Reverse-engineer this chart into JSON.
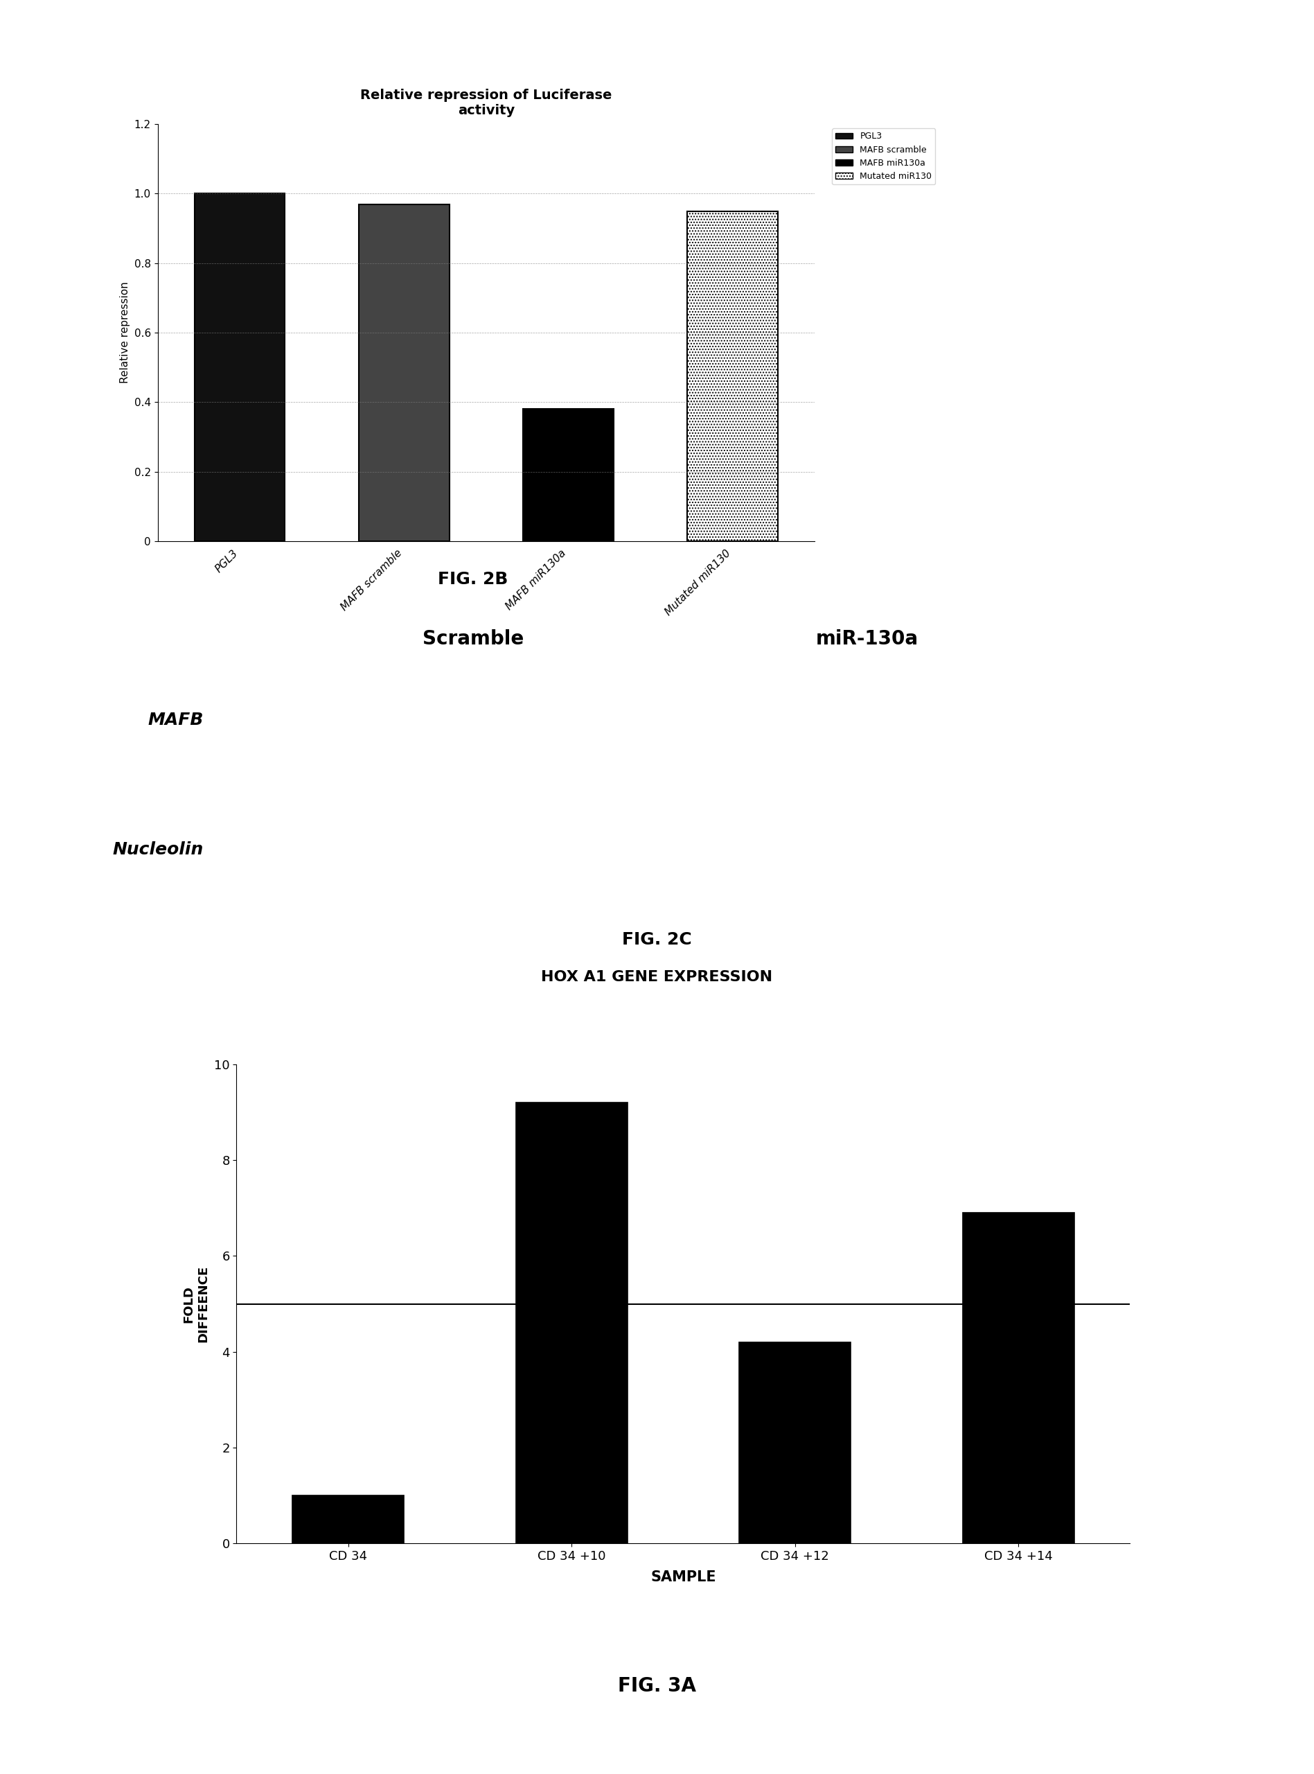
{
  "fig2b": {
    "title": "Relative repression of Luciferase\nactivity",
    "ylabel": "Relative repression",
    "categories": [
      "PGL3",
      "MAFB scramble",
      "MAFB miR130a",
      "Mutated miR130"
    ],
    "values": [
      1.0,
      0.97,
      0.38,
      0.95
    ],
    "bar_colors": [
      "#111111",
      "#444444",
      "#000000",
      "#ffffff"
    ],
    "bar_edgecolors": [
      "#000000",
      "#000000",
      "#000000",
      "#000000"
    ],
    "ylim": [
      0,
      1.2
    ],
    "yticks": [
      0,
      0.2,
      0.4,
      0.6,
      0.8,
      1.0,
      1.2
    ],
    "legend_labels": [
      "PGL3",
      "MAFB scramble",
      "MAFB miR130a",
      "Mutated miR130"
    ],
    "legend_colors": [
      "#111111",
      "#444444",
      "#000000",
      "#ffffff"
    ],
    "fig_label": "FIG. 2B"
  },
  "fig2c": {
    "scramble_label": "Scramble",
    "mir_label": "miR-130a",
    "band1_label": "MAFB",
    "band2_label": "Nucleolin",
    "band_color": "#000000",
    "fig_label": "FIG. 2C"
  },
  "fig3a": {
    "title": "HOX A1 GENE EXPRESSION",
    "ylabel": "FOLD\nDIFFEENCE",
    "xlabel": "SAMPLE",
    "categories": [
      "CD 34",
      "CD 34 +10",
      "CD 34 +12",
      "CD 34 +14"
    ],
    "values": [
      1.0,
      9.2,
      4.2,
      6.9
    ],
    "bar_color": "#000000",
    "ylim": [
      0,
      10
    ],
    "yticks": [
      0,
      2,
      4,
      6,
      8,
      10
    ],
    "hline_y": 5,
    "fig_label": "FIG. 3A"
  }
}
